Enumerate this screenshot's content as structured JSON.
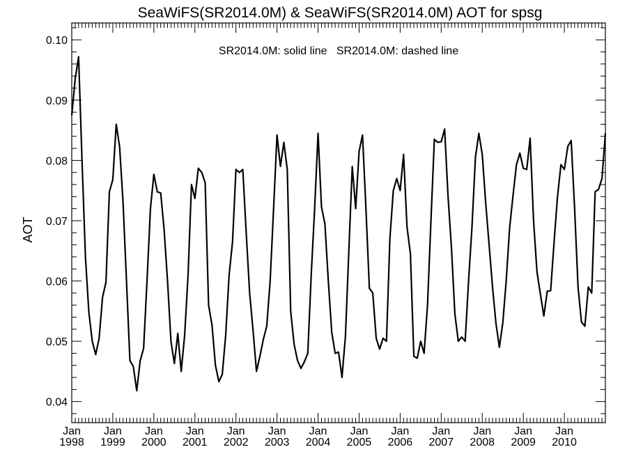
{
  "chart_data": {
    "type": "line",
    "title": "SeaWiFS(SR2014.0M) & SeaWiFS(SR2014.0M)  AOT for spsg",
    "annotation": "SR2014.0M: solid line   SR2014.0M: dashed line",
    "xlabel": "",
    "ylabel": "AOT",
    "xlim": [
      "1998-01",
      "2011-01"
    ],
    "ylim": [
      0.0365,
      0.1028
    ],
    "y_ticks": [
      "0.04",
      "0.05",
      "0.06",
      "0.07",
      "0.08",
      "0.09",
      "0.10"
    ],
    "x_ticks": [
      {
        "month": "Jan",
        "year": "1998"
      },
      {
        "month": "Jan",
        "year": "1999"
      },
      {
        "month": "Jan",
        "year": "2000"
      },
      {
        "month": "Jan",
        "year": "2001"
      },
      {
        "month": "Jan",
        "year": "2002"
      },
      {
        "month": "Jan",
        "year": "2003"
      },
      {
        "month": "Jan",
        "year": "2004"
      },
      {
        "month": "Jan",
        "year": "2005"
      },
      {
        "month": "Jan",
        "year": "2006"
      },
      {
        "month": "Jan",
        "year": "2007"
      },
      {
        "month": "Jan",
        "year": "2008"
      },
      {
        "month": "Jan",
        "year": "2009"
      },
      {
        "month": "Jan",
        "year": "2010"
      }
    ],
    "line_color": "#000000",
    "grid": false,
    "series": [
      {
        "style": "solid",
        "start": "1998-01",
        "interval": "month",
        "values": [
          0.0875,
          0.0935,
          0.0972,
          0.08,
          0.064,
          0.0548,
          0.05,
          0.0478,
          0.0505,
          0.0573,
          0.0598,
          0.0748,
          0.0768,
          0.086,
          0.0822,
          0.073,
          0.06,
          0.0468,
          0.0458,
          0.0418,
          0.0468,
          0.0488,
          0.06,
          0.072,
          0.0777,
          0.0748,
          0.0746,
          0.0685,
          0.06,
          0.05,
          0.0463,
          0.0513,
          0.045,
          0.051,
          0.061,
          0.076,
          0.0737,
          0.0787,
          0.078,
          0.0763,
          0.056,
          0.0527,
          0.046,
          0.0433,
          0.0445,
          0.051,
          0.061,
          0.0665,
          0.0785,
          0.078,
          0.0785,
          0.068,
          0.058,
          0.0518,
          0.045,
          0.0475,
          0.0503,
          0.0525,
          0.06,
          0.072,
          0.0842,
          0.079,
          0.083,
          0.0785,
          0.055,
          0.0495,
          0.0468,
          0.0455,
          0.0466,
          0.048,
          0.061,
          0.072,
          0.0845,
          0.0723,
          0.0695,
          0.06,
          0.0515,
          0.048,
          0.0482,
          0.044,
          0.0508,
          0.065,
          0.079,
          0.072,
          0.0815,
          0.0842,
          0.072,
          0.0588,
          0.058,
          0.0505,
          0.0487,
          0.0505,
          0.05,
          0.067,
          0.075,
          0.077,
          0.075,
          0.081,
          0.069,
          0.0645,
          0.0475,
          0.0472,
          0.05,
          0.048,
          0.056,
          0.07,
          0.0835,
          0.083,
          0.0831,
          0.0852,
          0.074,
          0.0655,
          0.0545,
          0.05,
          0.0507,
          0.05,
          0.06,
          0.069,
          0.0805,
          0.0845,
          0.081,
          0.073,
          0.066,
          0.059,
          0.053,
          0.049,
          0.053,
          0.06,
          0.0688,
          0.0742,
          0.0793,
          0.0812,
          0.0787,
          0.0785,
          0.0837,
          0.07,
          0.0615,
          0.0578,
          0.0542,
          0.0583,
          0.0584,
          0.0665,
          0.074,
          0.0793,
          0.0785,
          0.0823,
          0.0833,
          0.072,
          0.059,
          0.0532,
          0.0525,
          0.059,
          0.058,
          0.0748,
          0.0752,
          0.077,
          0.0845
        ]
      }
    ]
  }
}
